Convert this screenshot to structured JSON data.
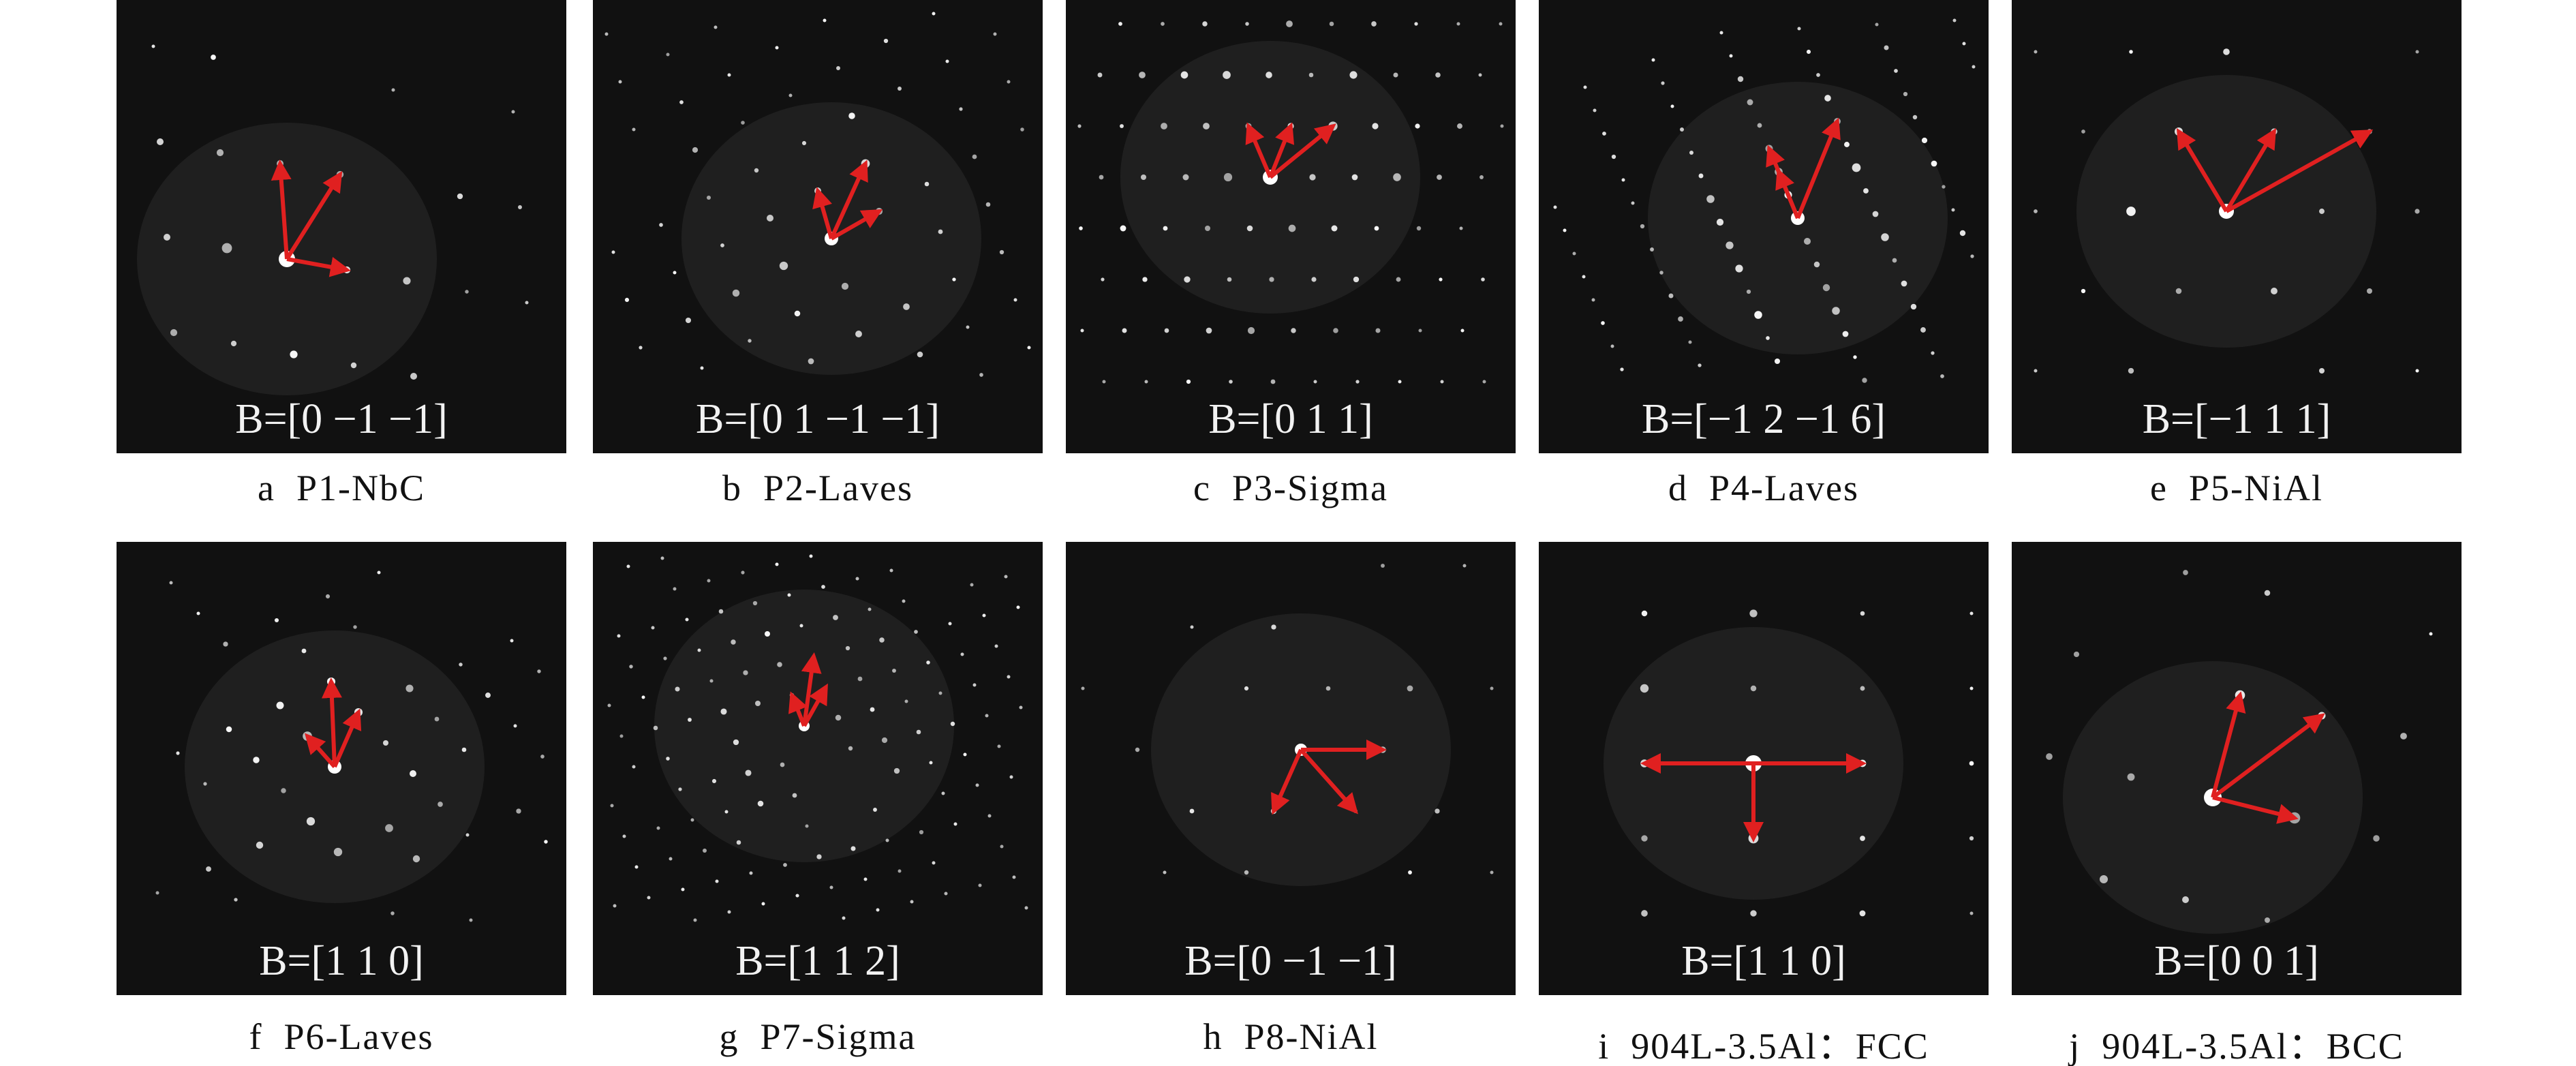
{
  "panels": [
    {
      "letter": "a",
      "caption": "P1-NbC",
      "zone_axis": "B=[0 −1 −1]"
    },
    {
      "letter": "b",
      "caption": "P2-Laves",
      "zone_axis": "B=[0 1 −1 −1]"
    },
    {
      "letter": "c",
      "caption": "P3-Sigma",
      "zone_axis": "B=[0 1 1]"
    },
    {
      "letter": "d",
      "caption": "P4-Laves",
      "zone_axis": "B=[−1 2 −1 6]"
    },
    {
      "letter": "e",
      "caption": "P5-NiAl",
      "zone_axis": "B=[−1 1 1]"
    },
    {
      "letter": "f",
      "caption": "P6-Laves",
      "zone_axis": "B=[1 1 0]"
    },
    {
      "letter": "g",
      "caption": "P7-Sigma",
      "zone_axis": "B=[1 1 2]"
    },
    {
      "letter": "h",
      "caption": "P8-NiAl",
      "zone_axis": "B=[0 −1 −1]"
    },
    {
      "letter": "i",
      "caption": "904L-3.5Al：FCC",
      "zone_axis": "B=[1 1 0]"
    },
    {
      "letter": "j",
      "caption": "904L-3.5Al：BCC",
      "zone_axis": "B=[0 0 1]"
    }
  ]
}
